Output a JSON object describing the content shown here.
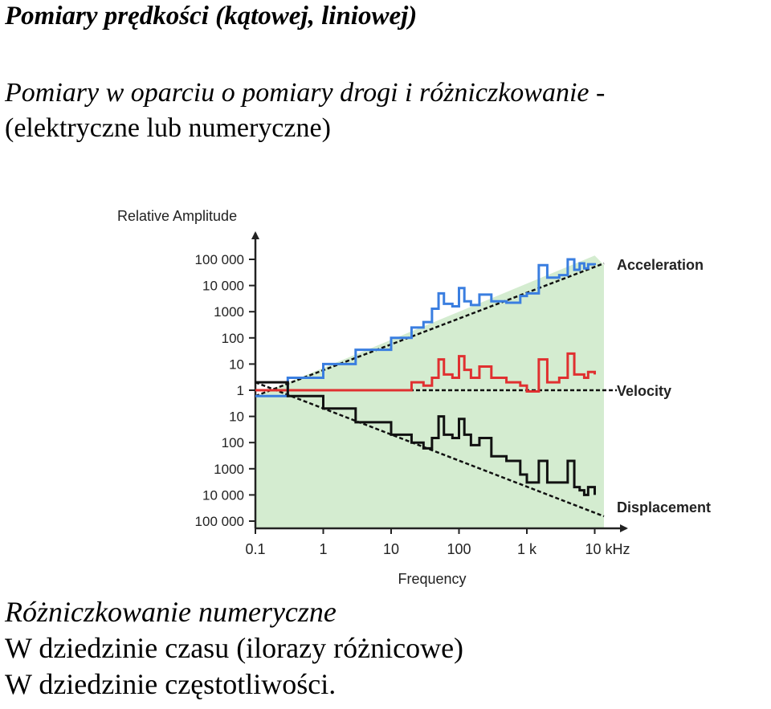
{
  "slide": {
    "title": "Pomiary prędkości (kątowej, liniowej)",
    "subtitle_line1": "Pomiary w oparciu o pomiary drogi i różniczkowanie -",
    "subtitle_line2": "(elektryczne lub numeryczne)",
    "bottom_line1": "Różniczkowanie numeryczne",
    "bottom_line2": "W dziedzinie czasu (ilorazy różnicowe)",
    "bottom_line3": "W dziedzinie częstotliwości."
  },
  "chart_data": {
    "type": "line",
    "title": "",
    "ylabel": "Relative Amplitude",
    "xlabel": "Frequency",
    "x_scale": "log",
    "y_scale": "log",
    "x_ticks": [
      "0.1",
      "1",
      "10",
      "100",
      "1 k",
      "10 kHz"
    ],
    "x_tick_values": [
      0.1,
      1,
      10,
      100,
      1000,
      10000
    ],
    "y_ticks": [
      "100 000",
      "10 000",
      "1000",
      "100",
      "10",
      "1",
      "10",
      "100",
      "1000",
      "10 000",
      "100 000"
    ],
    "y_tick_exponents": [
      5,
      4,
      3,
      2,
      1,
      0,
      -1,
      -2,
      -3,
      -4,
      -5
    ],
    "series": [
      {
        "name": "Acceleration",
        "color": "#3a7ee0",
        "trend_color": "#111111",
        "x": [
          0.1,
          0.3,
          1,
          3,
          10,
          20,
          30,
          40,
          50,
          60,
          80,
          100,
          120,
          150,
          200,
          300,
          500,
          800,
          1000,
          1500,
          2000,
          3000,
          4000,
          5000,
          6000,
          7000,
          8000,
          10000
        ],
        "y": [
          0.6,
          3,
          10,
          35,
          100,
          250,
          400,
          1300,
          5000,
          2000,
          1600,
          8000,
          2500,
          1800,
          4500,
          2500,
          2200,
          4000,
          5000,
          60000,
          20000,
          25000,
          100000,
          40000,
          70000,
          45000,
          65000,
          60000
        ]
      },
      {
        "name": "Velocity",
        "color": "#e03030",
        "trend_color": "#111111",
        "x": [
          0.1,
          0.3,
          1,
          3,
          10,
          20,
          30,
          40,
          50,
          60,
          80,
          100,
          120,
          150,
          200,
          300,
          500,
          800,
          1000,
          1500,
          2000,
          3000,
          4000,
          5000,
          6000,
          7000,
          8000,
          10000
        ],
        "y": [
          1,
          1,
          1,
          1,
          1,
          2,
          1.5,
          3,
          15,
          4,
          3,
          20,
          6,
          3,
          8,
          3,
          2,
          1.5,
          0.9,
          15,
          2,
          3,
          25,
          4,
          4,
          3,
          5,
          4
        ]
      },
      {
        "name": "Displacement",
        "color": "#111111",
        "trend_color": "#111111",
        "x": [
          0.1,
          0.3,
          1,
          3,
          10,
          20,
          30,
          40,
          50,
          60,
          80,
          100,
          120,
          150,
          200,
          300,
          500,
          800,
          1000,
          1500,
          2000,
          3000,
          4000,
          5000,
          6000,
          7000,
          8000,
          10000
        ],
        "y": [
          2,
          0.6,
          0.2,
          0.06,
          0.02,
          0.01,
          0.006,
          0.015,
          0.1,
          0.02,
          0.015,
          0.08,
          0.02,
          0.008,
          0.015,
          0.003,
          0.002,
          0.0006,
          0.0003,
          0.002,
          0.0003,
          0.0003,
          0.002,
          0.0002,
          0.00015,
          0.0001,
          0.0002,
          0.0001
        ]
      }
    ],
    "fill_color": "#d4ecd0",
    "grid": false,
    "legend": "right, next to each curve"
  }
}
